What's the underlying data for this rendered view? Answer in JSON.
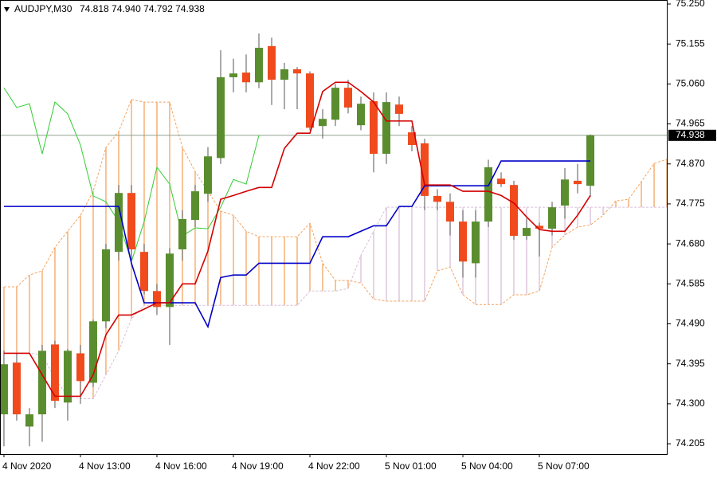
{
  "chart_data": {
    "type": "candlestick",
    "title": "AUDJPY,M30",
    "subtitle": "74.818 74.940 74.792 74.938",
    "open": [
      74.275,
      74.398,
      74.246,
      74.275,
      74.441,
      74.303,
      74.42,
      74.35,
      74.496,
      74.661,
      74.801,
      74.661,
      74.568,
      74.53,
      74.667,
      74.737,
      74.799,
      74.884,
      75.076,
      75.087,
      75.064,
      75.15,
      75.07,
      75.095,
      75.085,
      74.96,
      74.975,
      75.051,
      74.962,
      75.019,
      74.894,
      75.011,
      74.945,
      74.919,
      74.794,
      74.78,
      74.733,
      74.634,
      74.733,
      74.835,
      74.82,
      74.699,
      74.723,
      74.716,
      74.771,
      74.83,
      74.818
    ],
    "high": [
      74.426,
      74.42,
      74.29,
      74.44,
      74.45,
      74.43,
      74.44,
      74.5,
      74.68,
      74.82,
      74.82,
      74.68,
      74.585,
      74.67,
      74.76,
      74.82,
      74.91,
      75.14,
      75.12,
      75.13,
      75.18,
      75.17,
      75.11,
      75.1,
      75.09,
      75.0,
      75.06,
      75.07,
      75.03,
      75.04,
      75.04,
      75.03,
      74.96,
      74.93,
      74.81,
      74.8,
      74.76,
      74.76,
      74.88,
      74.85,
      74.83,
      74.74,
      74.73,
      74.78,
      74.86,
      74.87,
      74.94
    ],
    "low": [
      74.199,
      74.26,
      74.199,
      74.21,
      74.29,
      74.26,
      74.3,
      74.34,
      74.48,
      74.64,
      74.64,
      74.56,
      74.511,
      74.44,
      74.64,
      74.72,
      74.78,
      74.87,
      75.04,
      75.04,
      75.05,
      75.01,
      75.0,
      75.0,
      74.95,
      74.93,
      74.96,
      74.99,
      74.95,
      74.85,
      74.87,
      74.96,
      74.9,
      74.76,
      74.76,
      74.7,
      74.6,
      74.6,
      74.72,
      74.815,
      74.69,
      74.69,
      74.65,
      74.7,
      74.74,
      74.8,
      74.792
    ],
    "close": [
      74.394,
      74.275,
      74.275,
      74.426,
      74.307,
      74.426,
      74.354,
      74.496,
      74.667,
      74.801,
      74.667,
      74.568,
      74.53,
      74.657,
      74.739,
      74.805,
      74.888,
      75.076,
      75.085,
      75.064,
      75.146,
      75.07,
      75.095,
      75.085,
      74.956,
      74.977,
      75.051,
      75.004,
      75.013,
      74.894,
      75.017,
      74.989,
      74.915,
      74.794,
      74.78,
      74.733,
      74.638,
      74.733,
      74.862,
      74.822,
      74.699,
      74.718,
      74.716,
      74.767,
      74.833,
      74.822,
      74.938
    ],
    "bull_color": "#5a8d2e",
    "bear_color": "#f04a1d",
    "wick_color": "#555555",
    "tenkan": {
      "color": "#d40000",
      "values": [
        74.42,
        74.42,
        74.42,
        74.369,
        74.318,
        74.318,
        74.318,
        74.369,
        74.464,
        74.511,
        74.511,
        74.525,
        74.54,
        74.54,
        74.585,
        74.585,
        74.663,
        74.786,
        74.795,
        74.805,
        74.814,
        74.814,
        74.907,
        74.943,
        74.943,
        75.042,
        75.064,
        75.064,
        75.042,
        75.017,
        74.972,
        74.972,
        74.972,
        74.82,
        74.82,
        74.82,
        74.805,
        74.805,
        74.805,
        74.795,
        74.777,
        74.744,
        74.714,
        74.71,
        74.71,
        74.748,
        74.795
      ]
    },
    "kijun": {
      "color": "#0000c8",
      "values": [
        74.769,
        74.769,
        74.769,
        74.769,
        74.769,
        74.769,
        74.769,
        74.769,
        74.769,
        74.769,
        74.634,
        74.54,
        74.54,
        74.54,
        74.54,
        74.54,
        74.483,
        74.6,
        74.606,
        74.606,
        74.634,
        74.634,
        74.634,
        74.634,
        74.634,
        74.697,
        74.697,
        74.697,
        74.71,
        74.723,
        74.723,
        74.769,
        74.769,
        74.818,
        74.818,
        74.818,
        74.818,
        74.818,
        74.818,
        74.877,
        74.877,
        74.877,
        74.877,
        74.877,
        74.877,
        74.877,
        74.877
      ]
    },
    "chikou": {
      "color": "#33cc33",
      "values": [
        75.051,
        75.004,
        75.013,
        74.894,
        75.017,
        74.989,
        74.915,
        74.794,
        74.78,
        74.733,
        74.638,
        74.733,
        74.862,
        74.822,
        74.699,
        74.718,
        74.716,
        74.767,
        74.833,
        74.822,
        74.938
      ]
    },
    "span_a": {
      "color": "#f4a460",
      "values": [
        74.578,
        74.578,
        74.606,
        74.616,
        74.672,
        74.71,
        74.748,
        74.805,
        74.909,
        74.947,
        75.023,
        75.017,
        75.017,
        75.017,
        74.909,
        74.852,
        74.805,
        74.758,
        74.748,
        74.71,
        74.697,
        74.697,
        74.697,
        74.697,
        74.729,
        74.634,
        74.593,
        74.593,
        74.587,
        74.549,
        74.544,
        74.544,
        74.544,
        74.544,
        74.616,
        74.625,
        74.559,
        74.536,
        74.536,
        74.536,
        74.559,
        74.559,
        74.568,
        74.672,
        74.701,
        74.72,
        74.725,
        74.748,
        74.782,
        74.786,
        74.828,
        74.871,
        74.881
      ]
    },
    "span_b": {
      "color": "#d8bfd8",
      "values": [
        74.42,
        74.42,
        74.42,
        74.417,
        74.36,
        74.318,
        74.312,
        74.312,
        74.369,
        74.426,
        74.502,
        74.534,
        74.534,
        74.534,
        74.534,
        74.534,
        74.534,
        74.534,
        74.534,
        74.534,
        74.534,
        74.534,
        74.534,
        74.534,
        74.568,
        74.568,
        74.568,
        74.574,
        74.653,
        74.71,
        74.767,
        74.767,
        74.767,
        74.767,
        74.767,
        74.767,
        74.767,
        74.767,
        74.767,
        74.767,
        74.767,
        74.767,
        74.767,
        74.767,
        74.767,
        74.767,
        74.767,
        74.767,
        74.767,
        74.767,
        74.767,
        74.767,
        74.767
      ]
    },
    "last_price": 74.938,
    "last_price_color": "#8fa08f",
    "xlim": [
      -0.31,
      52.06
    ],
    "xticks": [
      {
        "value": 0,
        "label": "4 Nov 2020"
      },
      {
        "value": 6,
        "label": "4 Nov 13:00"
      },
      {
        "value": 12,
        "label": "4 Nov 16:00"
      },
      {
        "value": 18,
        "label": "4 Nov 19:00"
      },
      {
        "value": 24,
        "label": "4 Nov 22:00"
      },
      {
        "value": 30,
        "label": "5 Nov 01:00"
      },
      {
        "value": 36,
        "label": "5 Nov 04:00"
      },
      {
        "value": 42,
        "label": "5 Nov 07:00"
      }
    ],
    "ylim": [
      74.1805,
      75.2595
    ],
    "yticks": [
      {
        "value": 75.25,
        "label": "75.250"
      },
      75.155,
      {
        "value": 75.06,
        "label": "75.060"
      },
      74.965,
      {
        "value": 74.87,
        "label": "74.870"
      },
      74.775,
      {
        "value": 74.68,
        "label": "74.680"
      },
      74.585,
      {
        "value": 74.49,
        "label": "74.490"
      },
      74.395,
      {
        "value": 74.3,
        "label": "74.300"
      },
      74.205
    ]
  }
}
